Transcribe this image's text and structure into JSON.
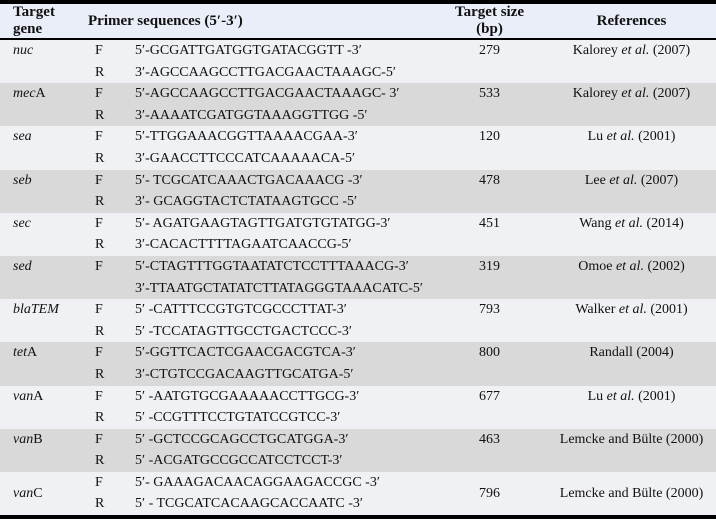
{
  "colors": {
    "header-bg": "#e9eef8",
    "band-light": "#f0f1f4",
    "band-gray": "#d9d9d9",
    "border": "#000000"
  },
  "table": {
    "headers": {
      "gene": "Target gene",
      "primers": "Primer sequences (5′-3′)",
      "size_line1": "Target size",
      "size_line2": "(bp)",
      "references": "References"
    },
    "groups": [
      {
        "gene_italic": "nuc",
        "gene_roman": "",
        "rows": [
          {
            "dir": "F",
            "seq": "5′-GCGATTGATGGTGATACGGTT -3′"
          },
          {
            "dir": "R",
            "seq": "3′-AGCCAAGCCTTGACGAACTAAAGC-5′"
          }
        ],
        "size": "279",
        "ref_pre": "Kalorey ",
        "ref_italic": "et al.",
        "ref_post": " (2007)"
      },
      {
        "gene_italic": "mec",
        "gene_roman": "A",
        "rows": [
          {
            "dir": "F",
            "seq": "5′-AGCCAAGCCTTGACGAACTAAAGC- 3′"
          },
          {
            "dir": "R",
            "seq": "3′-AAAATCGATGGTAAAGGTTGG -5′"
          }
        ],
        "size": "533",
        "ref_pre": "Kalorey ",
        "ref_italic": "et al.",
        "ref_post": " (2007)"
      },
      {
        "gene_italic": "sea",
        "gene_roman": "",
        "rows": [
          {
            "dir": "F",
            "seq": "5′-TTGGAAACGGTTAAAACGAA-3′"
          },
          {
            "dir": "R",
            "seq": "3′-GAACCTTCCCATCAAAAACA-5′"
          }
        ],
        "size": "120",
        "ref_pre": "Lu ",
        "ref_italic": "et al.",
        "ref_post": " (2001)"
      },
      {
        "gene_italic": "seb",
        "gene_roman": "",
        "rows": [
          {
            "dir": "F",
            "seq": "5′- TCGCATCAAACTGACAAACG -3′"
          },
          {
            "dir": "R",
            "seq": "3′- GCAGGTACTCTATAAGTGCC -5′"
          }
        ],
        "size": "478",
        "ref_pre": "Lee ",
        "ref_italic": "et al.",
        "ref_post": " (2007)"
      },
      {
        "gene_italic": "sec",
        "gene_roman": "",
        "rows": [
          {
            "dir": "F",
            "seq": "5′- AGATGAAGTAGTTGATGTGTATGG-3′"
          },
          {
            "dir": "R",
            "seq": "3′-CACACTTTTAGAATCAACCG-5′"
          }
        ],
        "size": "451",
        "ref_pre": "Wang ",
        "ref_italic": "et al.",
        "ref_post": " (2014)"
      },
      {
        "gene_italic": "sed",
        "gene_roman": "",
        "rows": [
          {
            "dir": "F",
            "seq": "5′-CTAGTTTGGTAATATCTCCTTTAAACG-3′"
          },
          {
            "dir": "",
            "seq": "3′-TTAATGCTATATCTTATAGGGTAAACATC-5′"
          }
        ],
        "size": "319",
        "ref_pre": "Omoe ",
        "ref_italic": "et al.",
        "ref_post": " (2002)"
      },
      {
        "gene_italic": "blaTEM",
        "gene_roman": "",
        "rows": [
          {
            "dir": "F",
            "seq": "5′ -CATTTCCGTGTCGCCCTTAT-3′"
          },
          {
            "dir": "R",
            "seq": "5′ -TCCATAGTTGCCTGACTCCC-3′"
          }
        ],
        "size": "793",
        "ref_pre": "Walker ",
        "ref_italic": "et al.",
        "ref_post": " (2001)"
      },
      {
        "gene_italic": "tet",
        "gene_roman": "A",
        "rows": [
          {
            "dir": "F",
            "seq": "5′-GGTTCACTCGAACGACGTCA-3′"
          },
          {
            "dir": "R",
            "seq": "3′-CTGTCCGACAAGTTGCATGA-5′"
          }
        ],
        "size": "800",
        "ref_pre": "Randall (2004)",
        "ref_italic": "",
        "ref_post": ""
      },
      {
        "gene_italic": "van",
        "gene_roman": "A",
        "rows": [
          {
            "dir": "F",
            "seq": "5′ -AATGTGCGAAAAACCTTGCG-3′"
          },
          {
            "dir": "R",
            "seq": "5′ -CCGTTTCCTGTATCCGTCC-3′"
          }
        ],
        "size": "677",
        "ref_pre": "Lu ",
        "ref_italic": "et al.",
        "ref_post": " (2001)"
      },
      {
        "gene_italic": "van",
        "gene_roman": "B",
        "rows": [
          {
            "dir": "F",
            "seq": "5′ -GCTCCGCAGCCTGCATGGA-3′"
          },
          {
            "dir": "R",
            "seq": "5′ -ACGATGCCGCCATCCTCCT-3′"
          }
        ],
        "size": "463",
        "ref_pre": "Lemcke and Bülte (2000)",
        "ref_italic": "",
        "ref_post": ""
      },
      {
        "gene_italic": "van",
        "gene_roman": "C",
        "centered": true,
        "rows": [
          {
            "dir": "F",
            "seq": "5′- GAAAGACAACAGGAAGACCGC -3′"
          },
          {
            "dir": "R",
            "seq": "5′ - TCGCATCACAAGCACCAATC -3′"
          }
        ],
        "size": "796",
        "ref_pre": "Lemcke and Bülte (2000)",
        "ref_italic": "",
        "ref_post": ""
      }
    ]
  }
}
